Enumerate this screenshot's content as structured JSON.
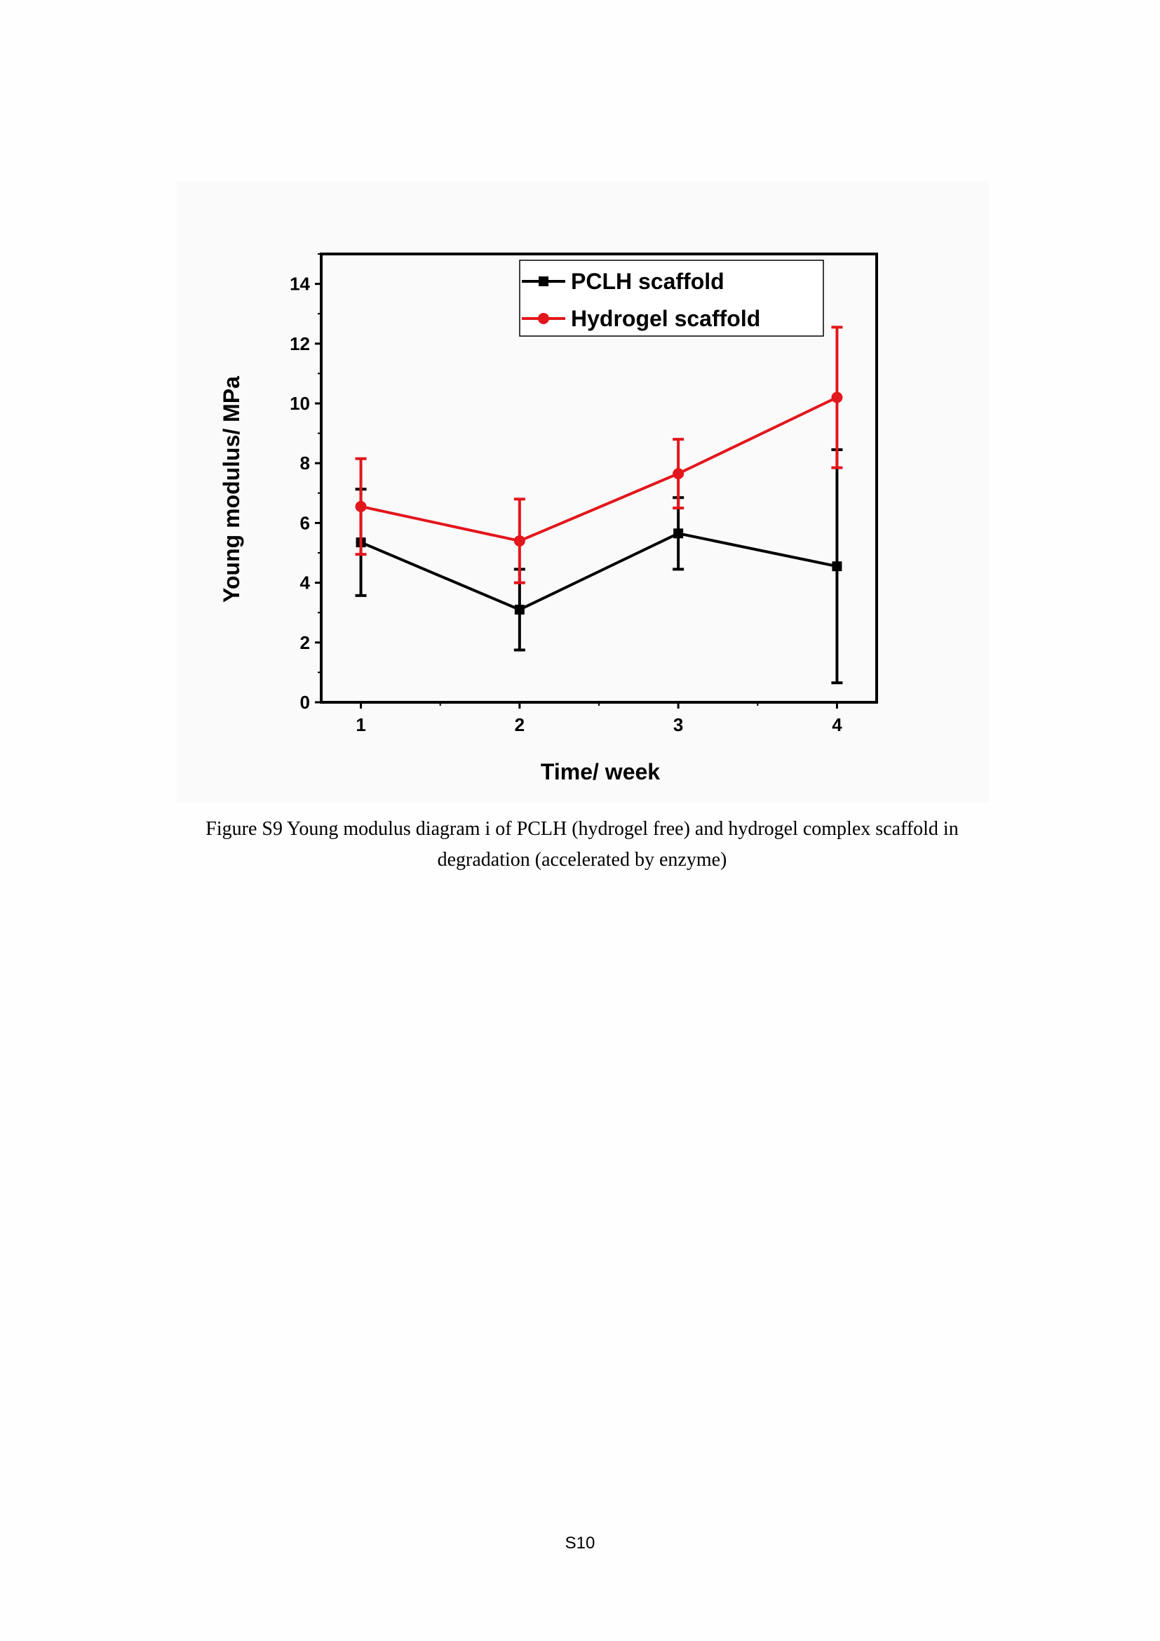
{
  "chart_data": {
    "type": "line",
    "xlabel": "Time/ week",
    "ylabel": "Young modulus/ MPa",
    "x": [
      1,
      2,
      3,
      4
    ],
    "xlim": [
      0.75,
      4.25
    ],
    "ylim": [
      0,
      15
    ],
    "xticks": [
      "1",
      "2",
      "3",
      "4"
    ],
    "yticks": [
      "0",
      "2",
      "4",
      "6",
      "8",
      "10",
      "12",
      "14"
    ],
    "grid": false,
    "legend_position": "top-right",
    "series": [
      {
        "name": "PCLH scaffold",
        "color": "#000000",
        "marker": "square",
        "values": [
          5.35,
          3.1,
          5.65,
          4.55
        ],
        "error": [
          1.78,
          1.35,
          1.2,
          3.9
        ]
      },
      {
        "name": "Hydrogel scaffold",
        "color": "#e3161b",
        "marker": "circle",
        "values": [
          6.55,
          5.4,
          7.65,
          10.2
        ],
        "error": [
          1.6,
          1.4,
          1.15,
          2.35
        ]
      }
    ]
  },
  "caption": {
    "line1": "Figure S9 Young modulus diagram i of PCLH (hydrogel free) and hydrogel complex scaffold in",
    "line2": "degradation (accelerated by enzyme)"
  },
  "page_number": "S10"
}
